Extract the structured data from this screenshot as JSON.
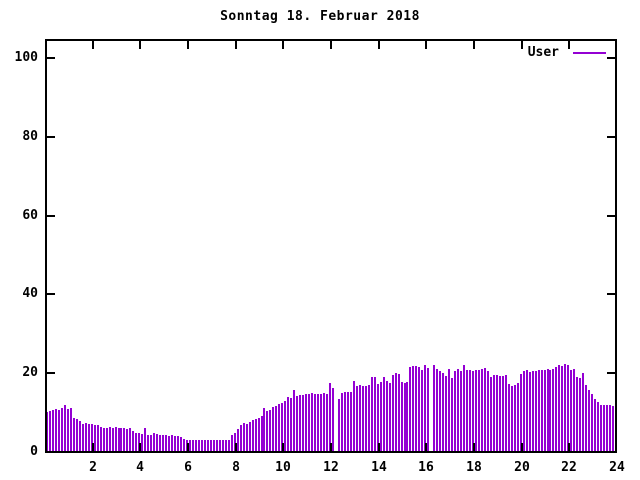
{
  "title": "Sonntag 18. Februar 2018",
  "legend": {
    "label": "User"
  },
  "colors": {
    "bar": "#9400D3",
    "axis": "#000000",
    "background": "#ffffff",
    "text": "#000000"
  },
  "chart_data": {
    "type": "bar",
    "title": "Sonntag 18. Februar 2018",
    "xlabel": "",
    "ylabel": "",
    "xlim": [
      0,
      24
    ],
    "ylim": [
      0,
      105
    ],
    "x_ticks": [
      2,
      4,
      6,
      8,
      10,
      12,
      14,
      16,
      18,
      20,
      22,
      24
    ],
    "y_ticks": [
      0,
      20,
      40,
      60,
      80,
      100
    ],
    "grid": false,
    "legend_position": "top-right-inside",
    "series": [
      {
        "name": "User",
        "color": "#9400D3",
        "interval_minutes": 7.5,
        "values": [
          10.3,
          10.6,
          11.0,
          11.2,
          10.9,
          11.3,
          12.3,
          11.2,
          11.4,
          9.0,
          8.6,
          8.0,
          7.4,
          7.5,
          7.3,
          7.4,
          7.1,
          7.0,
          6.6,
          6.4,
          6.3,
          6.5,
          6.4,
          6.6,
          6.4,
          6.3,
          6.4,
          6.2,
          6.3,
          5.6,
          5.2,
          5.1,
          4.7,
          6.3,
          4.6,
          4.5,
          5.0,
          4.8,
          4.6,
          4.5,
          4.5,
          4.4,
          4.6,
          4.3,
          4.2,
          4.1,
          3.6,
          3.4,
          3.3,
          3.2,
          3.3,
          3.2,
          3.3,
          3.2,
          3.3,
          3.2,
          3.3,
          3.2,
          3.4,
          3.3,
          3.2,
          3.3,
          4.6,
          5.2,
          6.2,
          7.2,
          7.5,
          7.4,
          7.8,
          8.5,
          8.7,
          9.0,
          9.5,
          11.4,
          10.6,
          10.9,
          11.6,
          12.0,
          12.4,
          12.8,
          13.2,
          14.3,
          13.9,
          15.9,
          14.4,
          14.8,
          14.6,
          14.9,
          15.0,
          15.2,
          14.9,
          15.1,
          15.0,
          15.3,
          15.1,
          17.7,
          16.4,
          0,
          13.6,
          15.3,
          15.5,
          15.4,
          15.5,
          18.3,
          17.0,
          17.2,
          17.1,
          16.9,
          17.3,
          19.4,
          19.2,
          17.5,
          17.9,
          19.3,
          18.4,
          17.7,
          19.8,
          20.3,
          20.0,
          17.9,
          17.8,
          18.1,
          21.8,
          22.0,
          22.2,
          21.9,
          21.1,
          22.3,
          21.7,
          0,
          22.4,
          21.2,
          20.9,
          20.3,
          19.5,
          21.2,
          19.1,
          20.7,
          21.4,
          20.9,
          22.3,
          21.0,
          21.1,
          20.9,
          21.1,
          21.0,
          21.3,
          21.5,
          20.7,
          19.4,
          19.7,
          19.9,
          19.6,
          19.5,
          19.7,
          17.5,
          16.9,
          17.3,
          17.7,
          20.0,
          20.7,
          21.0,
          20.5,
          20.8,
          20.9,
          21.0,
          21.1,
          21.0,
          21.2,
          21.0,
          21.4,
          21.9,
          22.4,
          22.2,
          22.5,
          22.3,
          21.1,
          21.3,
          19.3,
          19.1,
          20.4,
          17.3,
          16.1,
          14.9,
          13.6,
          12.9,
          12.3,
          12.1,
          12.2,
          12.1,
          12.0,
          12.4
        ]
      }
    ]
  }
}
